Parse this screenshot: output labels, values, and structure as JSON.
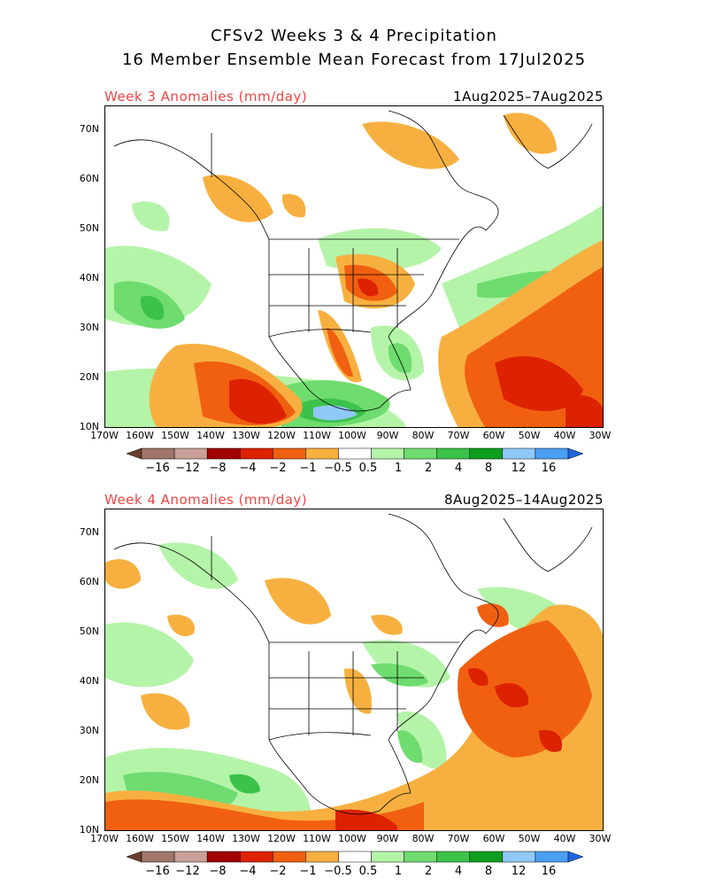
{
  "title_line1": "CFSv2 Weeks 3 & 4 Precipitation",
  "title_line2": "16 Member Ensemble Mean Forecast from 17Jul2025",
  "panels": [
    {
      "label": "Week 3 Anomalies (mm/day)",
      "dates": "1Aug2025–7Aug2025"
    },
    {
      "label": "Week 4 Anomalies (mm/day)",
      "dates": "8Aug2025–14Aug2025"
    }
  ],
  "lat_ticks": [
    "70N",
    "60N",
    "50N",
    "40N",
    "30N",
    "20N",
    "10N"
  ],
  "lon_ticks": [
    "170W",
    "160W",
    "150W",
    "140W",
    "130W",
    "120W",
    "110W",
    "100W",
    "90W",
    "80W",
    "70W",
    "60W",
    "50W",
    "40W",
    "30W"
  ],
  "colorbar": {
    "labels": [
      "−16",
      "−12",
      "−8",
      "−4",
      "−2",
      "−1",
      "−0.5",
      "0.5",
      "1",
      "2",
      "4",
      "8",
      "12",
      "16"
    ],
    "colors": [
      "#6b3d2a",
      "#a0766a",
      "#c8a098",
      "#a00000",
      "#dd2200",
      "#f06010",
      "#f7b040",
      "#ffffff",
      "#b4f4a8",
      "#6fdc6f",
      "#3cc24a",
      "#0e9e1e",
      "#90c8f8",
      "#4a9ff0",
      "#1f66e0"
    ]
  }
}
